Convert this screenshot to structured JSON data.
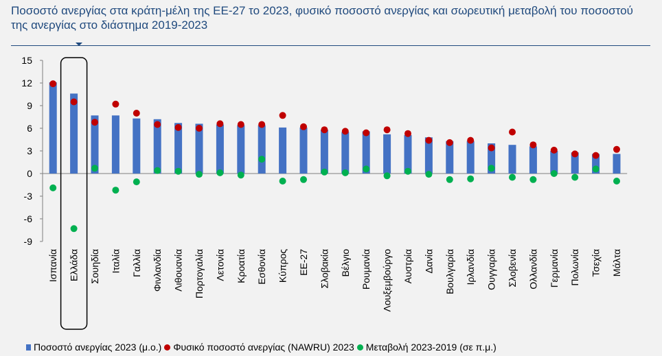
{
  "title": "Ποσοστό ανεργίας στα κράτη-μέλη της ΕΕ-27 το 2023, φυσικό ποσοστό ανεργίας και σωρευτική μεταβολή του ποσοστού της ανεργίας στο διάστημα 2019-2023",
  "colors": {
    "bar": "#4472c4",
    "nawru": "#c00000",
    "change": "#00b050",
    "title": "#1f497d"
  },
  "chart_data": {
    "type": "bar",
    "categories": [
      "Ισπανία",
      "Ελλάδα",
      "Σουηδία",
      "Ιταλία",
      "Γαλλία",
      "Φινλανδία",
      "Λιθουανία",
      "Πορτογαλία",
      "Λετονία",
      "Κροατία",
      "Εσθονία",
      "Κύπρος",
      "ΕΕ-27",
      "Σλοβακία",
      "Βέλγιο",
      "Ρουμανία",
      "Λουξεμβούργο",
      "Αυστρία",
      "Δανία",
      "Βουλγαρία",
      "Ιρλανδία",
      "Ουγγαρία",
      "Σλοβενία",
      "Ολλανδία",
      "Γερμανία",
      "Πολωνία",
      "Τσεχία",
      "Μάλτα"
    ],
    "series": [
      {
        "name": "Ποσοστό ανεργίας 2023 (μ.ο.)",
        "kind": "bar",
        "values": [
          12.1,
          10.6,
          7.7,
          7.7,
          7.3,
          7.2,
          6.7,
          6.6,
          6.5,
          6.4,
          6.4,
          6.1,
          6.1,
          5.8,
          5.5,
          5.6,
          5.2,
          5.1,
          4.8,
          4.3,
          4.3,
          4.0,
          3.8,
          3.6,
          3.0,
          2.8,
          2.6,
          2.6
        ]
      },
      {
        "name": "Φυσικό ποσοστό ανεργίας (NAWRU) 2023",
        "kind": "dot",
        "values": [
          11.9,
          9.5,
          6.8,
          9.2,
          8.0,
          6.5,
          6.1,
          6.0,
          6.6,
          6.5,
          6.5,
          7.7,
          6.2,
          5.8,
          5.6,
          5.4,
          5.8,
          5.3,
          4.4,
          4.1,
          4.4,
          3.4,
          5.5,
          3.8,
          3.1,
          2.6,
          2.4,
          3.2
        ]
      },
      {
        "name": "Μεταβολή 2023-2019 (σε π.μ.)",
        "kind": "dot",
        "values": [
          -1.9,
          -7.3,
          0.7,
          -2.2,
          -1.1,
          0.4,
          0.3,
          -0.1,
          0.1,
          -0.2,
          1.9,
          -1.0,
          -0.8,
          0.2,
          0.1,
          0.6,
          -0.3,
          0.3,
          -0.1,
          -0.8,
          -0.7,
          0.7,
          -0.5,
          -0.8,
          0.0,
          -0.5,
          0.6,
          -1.0
        ]
      }
    ],
    "yticks": [
      "15",
      "12",
      "9",
      "6",
      "3",
      "0",
      "-3",
      "-6",
      "-9"
    ],
    "ylim": [
      -9,
      15
    ],
    "highlight": "Ελλάδα",
    "legend_position": "bottom"
  }
}
